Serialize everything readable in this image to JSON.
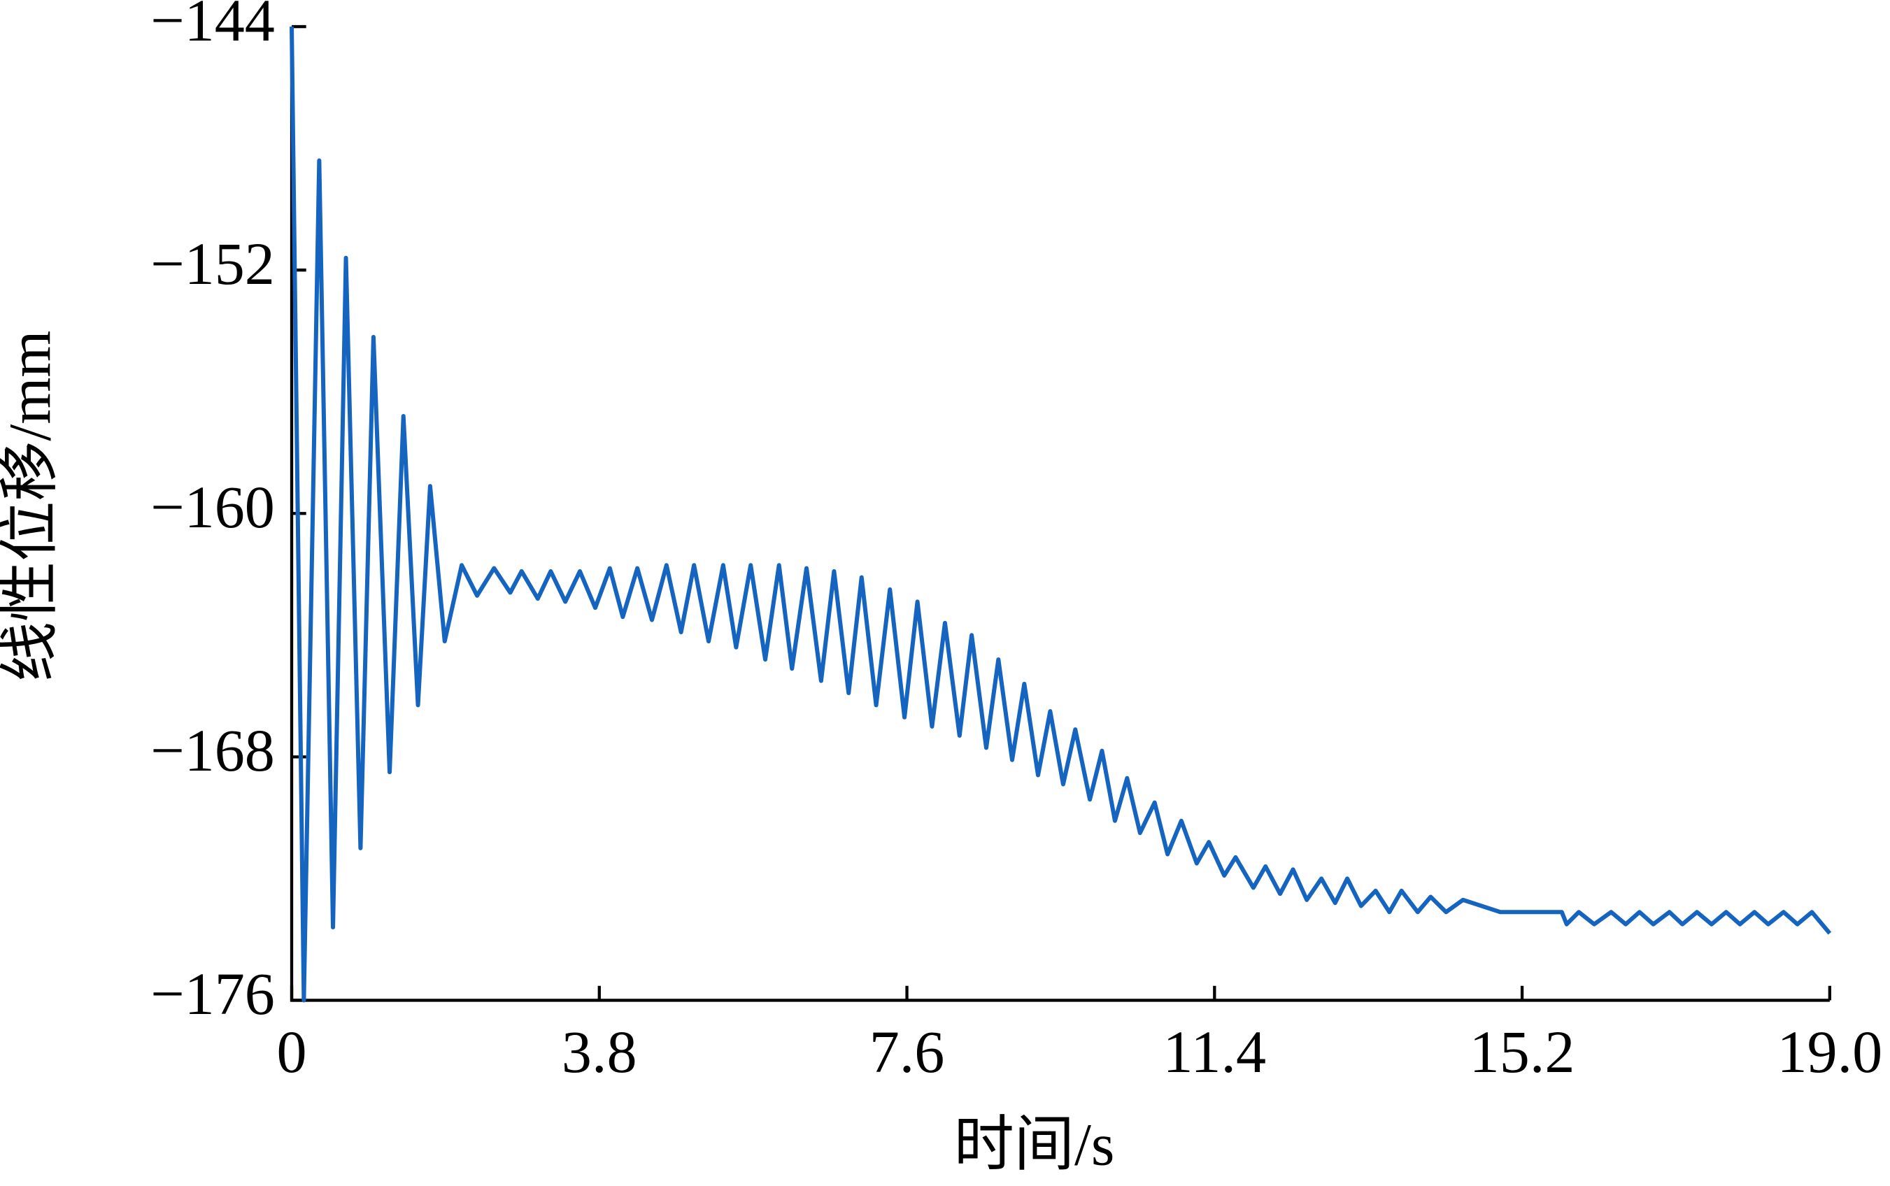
{
  "chart_data": {
    "type": "line",
    "xlabel": "时间/s",
    "ylabel": "线性位移/mm",
    "xlim": [
      0,
      19
    ],
    "xticks": [
      0,
      3.8,
      7.6,
      11.4,
      15.2,
      {
        "value": 19,
        "label": "19.0"
      }
    ],
    "ylim": [
      -176,
      -144
    ],
    "yticks": [
      {
        "value": -176,
        "label": "−176"
      },
      {
        "value": -168,
        "label": "−168"
      },
      {
        "value": -160,
        "label": "−160"
      },
      {
        "value": -152,
        "label": "−152"
      },
      {
        "value": -144,
        "label": "−144"
      }
    ],
    "grid": false,
    "series": [
      {
        "color": "#1565c0",
        "x": [
          0,
          0.15,
          0.34,
          0.51,
          0.67,
          0.85,
          1.01,
          1.21,
          1.38,
          1.56,
          1.71,
          1.89,
          2.1,
          2.29,
          2.5,
          2.7,
          2.84,
          3.04,
          3.2,
          3.38,
          3.56,
          3.75,
          3.93,
          4.09,
          4.27,
          4.45,
          4.63,
          4.81,
          4.97,
          5.15,
          5.33,
          5.49,
          5.67,
          5.85,
          6.02,
          6.18,
          6.36,
          6.54,
          6.7,
          6.88,
          7.04,
          7.22,
          7.39,
          7.57,
          7.73,
          7.91,
          8.07,
          8.25,
          8.4,
          8.58,
          8.73,
          8.9,
          9.05,
          9.22,
          9.37,
          9.53,
          9.68,
          9.86,
          10.01,
          10.17,
          10.32,
          10.48,
          10.66,
          10.82,
          10.99,
          11.18,
          11.33,
          11.52,
          11.66,
          11.88,
          12.03,
          12.21,
          12.37,
          12.54,
          12.72,
          12.89,
          13.04,
          13.21,
          13.39,
          13.56,
          13.71,
          13.91,
          14.07,
          14.26,
          14.47,
          14.93,
          15.69,
          15.75,
          15.9,
          16.09,
          16.3,
          16.48,
          16.65,
          16.82,
          17.02,
          17.18,
          17.36,
          17.54,
          17.72,
          17.89,
          18.07,
          18.24,
          18.43,
          18.6,
          18.78,
          19.0
        ],
        "values": [
          -144,
          -176,
          -148.4,
          -173.6,
          -151.6,
          -171.0,
          -154.2,
          -168.5,
          -156.8,
          -166.3,
          -159.1,
          -164.2,
          -161.7,
          -162.7,
          -161.8,
          -162.6,
          -161.9,
          -162.8,
          -161.9,
          -162.9,
          -161.9,
          -163.1,
          -161.8,
          -163.4,
          -161.8,
          -163.5,
          -161.7,
          -163.9,
          -161.7,
          -164.2,
          -161.7,
          -164.4,
          -161.7,
          -164.8,
          -161.7,
          -165.1,
          -161.8,
          -165.5,
          -161.9,
          -165.9,
          -162.1,
          -166.3,
          -162.5,
          -166.7,
          -162.9,
          -167.0,
          -163.6,
          -167.3,
          -164.0,
          -167.7,
          -164.8,
          -168.1,
          -165.6,
          -168.6,
          -166.5,
          -168.9,
          -167.1,
          -169.4,
          -167.8,
          -170.1,
          -168.7,
          -170.5,
          -169.5,
          -171.2,
          -170.1,
          -171.5,
          -170.8,
          -171.9,
          -171.3,
          -172.3,
          -171.6,
          -172.5,
          -171.7,
          -172.7,
          -172.0,
          -172.8,
          -172.0,
          -172.9,
          -172.4,
          -173.1,
          -172.4,
          -173.1,
          -172.6,
          -173.1,
          -172.7,
          -173.1,
          -173.1,
          -173.5,
          -173.1,
          -173.5,
          -173.1,
          -173.5,
          -173.1,
          -173.5,
          -173.1,
          -173.5,
          -173.1,
          -173.5,
          -173.1,
          -173.5,
          -173.1,
          -173.5,
          -173.1,
          -173.5,
          -173.1,
          -173.8
        ]
      }
    ]
  }
}
